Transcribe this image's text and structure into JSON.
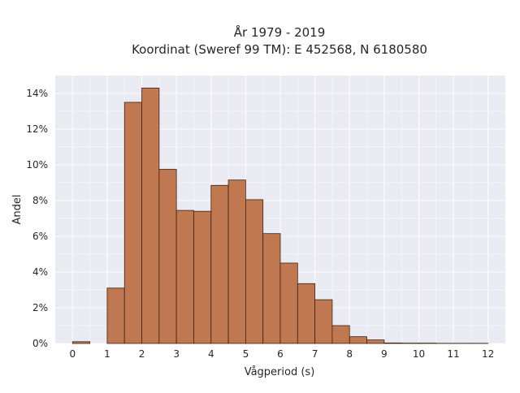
{
  "chart_data": {
    "type": "bar",
    "title_lines": [
      "År 1979 - 2019",
      "Koordinat (Sweref 99 TM): E 452568, N 6180580"
    ],
    "xlabel": "Vågperiod (s)",
    "ylabel": "Andel",
    "bin_width": 0.5,
    "bins": [
      {
        "start": 0.0,
        "end": 0.5,
        "value": 0.1
      },
      {
        "start": 0.5,
        "end": 1.0,
        "value": 0.0
      },
      {
        "start": 1.0,
        "end": 1.5,
        "value": 3.1
      },
      {
        "start": 1.5,
        "end": 2.0,
        "value": 13.5
      },
      {
        "start": 2.0,
        "end": 2.5,
        "value": 14.3
      },
      {
        "start": 2.5,
        "end": 3.0,
        "value": 9.75
      },
      {
        "start": 3.0,
        "end": 3.5,
        "value": 7.45
      },
      {
        "start": 3.5,
        "end": 4.0,
        "value": 7.4
      },
      {
        "start": 4.0,
        "end": 4.5,
        "value": 8.85
      },
      {
        "start": 4.5,
        "end": 5.0,
        "value": 9.15
      },
      {
        "start": 5.0,
        "end": 5.5,
        "value": 8.05
      },
      {
        "start": 5.5,
        "end": 6.0,
        "value": 6.15
      },
      {
        "start": 6.0,
        "end": 6.5,
        "value": 4.5
      },
      {
        "start": 6.5,
        "end": 7.0,
        "value": 3.35
      },
      {
        "start": 7.0,
        "end": 7.5,
        "value": 2.45
      },
      {
        "start": 7.5,
        "end": 8.0,
        "value": 1.0
      },
      {
        "start": 8.0,
        "end": 8.5,
        "value": 0.38
      },
      {
        "start": 8.5,
        "end": 9.0,
        "value": 0.2
      },
      {
        "start": 9.0,
        "end": 9.5,
        "value": 0.03
      },
      {
        "start": 9.5,
        "end": 10.0,
        "value": 0.02
      },
      {
        "start": 10.0,
        "end": 10.5,
        "value": 0.02
      },
      {
        "start": 10.5,
        "end": 11.0,
        "value": 0.01
      },
      {
        "start": 11.0,
        "end": 11.5,
        "value": 0.01
      },
      {
        "start": 11.5,
        "end": 12.0,
        "value": 0.01
      }
    ],
    "xlim": [
      -0.5,
      12.5
    ],
    "ylim": [
      0,
      15
    ],
    "x_ticks": [
      0,
      1,
      2,
      3,
      4,
      5,
      6,
      7,
      8,
      9,
      10,
      11,
      12
    ],
    "x_tick_labels": [
      "0",
      "1",
      "2",
      "3",
      "4",
      "5",
      "6",
      "7",
      "8",
      "9",
      "10",
      "11",
      "12"
    ],
    "y_ticks": [
      0,
      2,
      4,
      6,
      8,
      10,
      12,
      14
    ],
    "y_tick_labels": [
      "0%",
      "2%",
      "4%",
      "6%",
      "8%",
      "10%",
      "12%",
      "14%"
    ],
    "grid": true,
    "colors": {
      "bar_fill": "#c07850",
      "bar_edge": "#3d2314",
      "plot_background": "#eaeaf2",
      "grid": "#ffffff"
    }
  }
}
